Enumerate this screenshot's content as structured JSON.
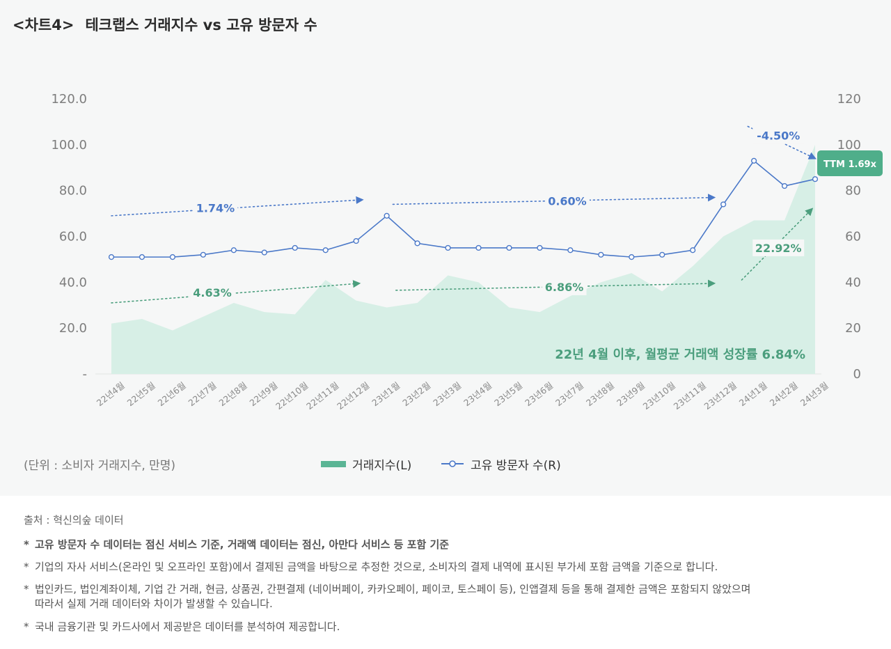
{
  "title": {
    "tag": "<차트4>",
    "text": "테크랩스 거래지수 vs 고유 방문자 수"
  },
  "chart_data": {
    "type": "area+line",
    "categories": [
      "22년4월",
      "22년5월",
      "22년6월",
      "22년7월",
      "22년8월",
      "22년9월",
      "22년10월",
      "22년11월",
      "22년12월",
      "23년1월",
      "23년2월",
      "23년3월",
      "23년4월",
      "23년5월",
      "23년6월",
      "23년7월",
      "23년8월",
      "23년9월",
      "23년10월",
      "23년11월",
      "23년12월",
      "24년1월",
      "24년2월",
      "24년3월"
    ],
    "series": [
      {
        "name": "거래지수(L)",
        "kind": "area",
        "axis": "left",
        "color": "#5bb595",
        "fill": "#d7efe6",
        "values": [
          22,
          24,
          19,
          25,
          31,
          27,
          26,
          41,
          32,
          29,
          31,
          43,
          40,
          29,
          27,
          34,
          40,
          44,
          36,
          47,
          60,
          67,
          67,
          100
        ]
      },
      {
        "name": "고유 방문자 수(R)",
        "kind": "line",
        "axis": "right",
        "color": "#4a78c8",
        "values": [
          51,
          51,
          51,
          52,
          54,
          53,
          55,
          54,
          58,
          69,
          57,
          55,
          55,
          55,
          55,
          54,
          52,
          51,
          52,
          54,
          74,
          93,
          82,
          85
        ]
      }
    ],
    "left_axis": {
      "ticks": [
        "120.0",
        "100.0",
        "80.0",
        "60.0",
        "40.0",
        "20.0",
        "-"
      ],
      "ylim": [
        0,
        120
      ]
    },
    "right_axis": {
      "ticks": [
        "120",
        "100",
        "80",
        "60",
        "40",
        "20",
        "0"
      ],
      "ylim": [
        0,
        120
      ]
    },
    "annotations": [
      {
        "text": "1.74%",
        "color": "#4a78c8",
        "from": [
          0,
          69
        ],
        "to": [
          8.2,
          76
        ],
        "label_at": [
          3.4,
          72.5
        ]
      },
      {
        "text": "0.60%",
        "color": "#4a78c8",
        "from": [
          9.2,
          74
        ],
        "to": [
          19.7,
          77
        ],
        "label_at": [
          14.9,
          75.5
        ]
      },
      {
        "text": "-4.50%",
        "color": "#4a78c8",
        "from": [
          20.8,
          108
        ],
        "to": [
          23.0,
          94
        ],
        "label_at": [
          21.8,
          104
        ]
      },
      {
        "text": "4.63%",
        "color": "#4b9e7d",
        "from": [
          0,
          31
        ],
        "to": [
          8.1,
          39.5
        ],
        "label_at": [
          3.3,
          35.5
        ]
      },
      {
        "text": "6.86%",
        "color": "#4b9e7d",
        "from": [
          9.3,
          36.5
        ],
        "to": [
          19.7,
          39.5
        ],
        "label_at": [
          14.8,
          38
        ]
      },
      {
        "text": "22.92%",
        "color": "#4b9e7d",
        "from": [
          20.6,
          41
        ],
        "to": [
          22.9,
          72
        ],
        "label_at": [
          21.8,
          55
        ]
      }
    ],
    "ttm_label": "TTM 1.69x",
    "growth_text": "22년 4월 이후, 월평균 거래액 성장률 6.84%",
    "unit_text": "(단위 : 소비자 거래지수, 만명)",
    "legend": [
      {
        "label": "거래지수(L)",
        "kind": "area"
      },
      {
        "label": "고유 방문자 수(R)",
        "kind": "line"
      }
    ],
    "colors": {
      "green": "#5bb595",
      "green_text": "#4b9e7d",
      "blue": "#4a78c8",
      "ttm_bg": "#4fae8a"
    }
  },
  "footer": {
    "source": "출처 : 혁신의숲 데이터",
    "notes": [
      {
        "star": "*",
        "text": "고유 방문자 수 데이터는 점신 서비스 기준, 거래액 데이터는 점신, 아만다 서비스 등 포함 기준",
        "bold": true
      },
      {
        "star": "*",
        "text": "기업의 자사 서비스(온라인 및 오프라인 포함)에서 결제된 금액을 바탕으로 추정한 것으로, 소비자의 결제 내역에 표시된 부가세 포함 금액을 기준으로 합니다."
      },
      {
        "star": "*",
        "text": "법인카드, 법인계좌이체, 기업 간 거래, 현금, 상품권, 간편결제 (네이버페이, 카카오페이, 페이코, 토스페이 등), 인앱결제 등을 통해 결제한 금액은 포함되지 않았으며",
        "cont": "따라서 실제 거래 데이터와 차이가 발생할 수 있습니다."
      },
      {
        "star": "*",
        "text": "국내 금융기관 및 카드사에서 제공받은 데이터를 분석하여 제공합니다."
      }
    ]
  }
}
